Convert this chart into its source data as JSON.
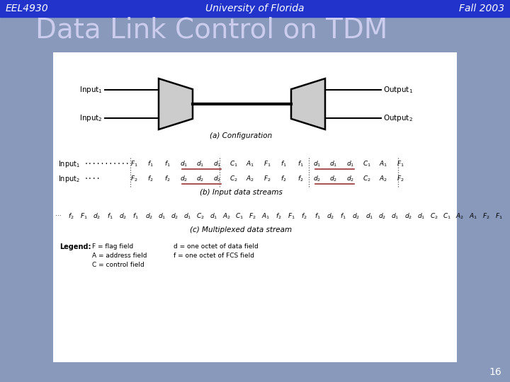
{
  "header_bg": "#2233cc",
  "header_text_color": "#ffffff",
  "slide_bg": "#8899bb",
  "content_bg": "#ffffff",
  "title_text": "Data Link Control on TDM",
  "title_color": "#ccccee",
  "left_label": "EEL4930",
  "center_label": "University of Florida",
  "right_label": "Fall 2003",
  "page_number": "16",
  "header_fontsize": 10,
  "title_fontsize": 28,
  "caption_a": "(a) Configuration",
  "caption_b": "(b) Input data streams",
  "caption_c": "(c) Multiplexed data stream"
}
